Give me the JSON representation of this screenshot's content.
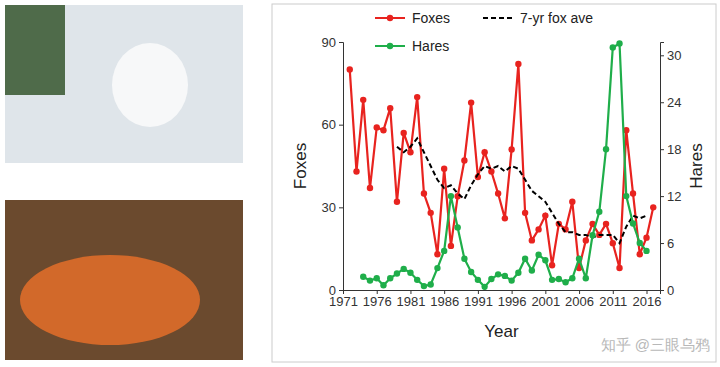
{
  "chart_data": {
    "type": "line",
    "x_label": "Year",
    "y_label": "Foxes",
    "y2_label": "Hares",
    "xlim": [
      1971,
      2018
    ],
    "xticks": [
      1971,
      1976,
      1981,
      1986,
      1991,
      1996,
      2001,
      2006,
      2011,
      2016
    ],
    "ylim": [
      0,
      90
    ],
    "yticks": [
      0,
      30,
      60,
      90
    ],
    "y2lim": [
      0,
      31.7
    ],
    "y2ticks": [
      0,
      6,
      12,
      18,
      24,
      30
    ],
    "legend": "upper left",
    "grid": false,
    "annotations": [
      "知乎 @三眼乌鸦"
    ],
    "series": [
      {
        "name": "Foxes",
        "color": "#e8231f",
        "marker": "circle",
        "line_style": "solid",
        "x": [
          1972,
          1973,
          1974,
          1975,
          1976,
          1977,
          1978,
          1979,
          1980,
          1981,
          1982,
          1983,
          1984,
          1985,
          1986,
          1987,
          1988,
          1989,
          1990,
          1991,
          1992,
          1993,
          1994,
          1995,
          1996,
          1997,
          1998,
          1999,
          2000,
          2001,
          2002,
          2003,
          2004,
          2005,
          2006,
          2007,
          2008,
          2009,
          2010,
          2011,
          2012,
          2013,
          2014,
          2015,
          2016,
          2017
        ],
        "values": [
          80,
          43,
          69,
          37,
          59,
          58,
          66,
          32,
          57,
          50,
          70,
          35,
          28,
          13,
          44,
          16,
          34,
          47,
          68,
          41,
          50,
          43,
          35,
          26,
          51,
          82,
          28,
          18,
          22,
          27,
          9,
          24,
          22,
          32,
          8,
          18,
          24,
          20,
          24,
          17,
          8,
          58,
          35,
          13,
          19,
          30
        ]
      },
      {
        "name": "7-yr fox ave",
        "color": "#000000",
        "marker": "none",
        "line_style": "dashed",
        "x": [
          1979,
          1980,
          1981,
          1982,
          1983,
          1984,
          1985,
          1986,
          1987,
          1988,
          1989,
          1990,
          1991,
          1992,
          1993,
          1994,
          1995,
          1996,
          1997,
          1998,
          1999,
          2000,
          2001,
          2002,
          2003,
          2004,
          2005,
          2006,
          2007,
          2008,
          2009,
          2010,
          2011,
          2012,
          2013,
          2014,
          2015,
          2016
        ],
        "values": [
          52,
          50,
          52,
          55,
          50,
          45,
          40,
          37,
          38,
          35,
          33,
          38,
          42,
          45,
          44,
          45,
          43,
          45,
          44,
          40,
          36,
          34,
          32,
          28,
          24,
          21,
          21,
          20,
          20,
          19,
          20,
          20,
          20,
          17,
          23,
          27,
          26,
          27
        ]
      },
      {
        "name": "Hares",
        "color": "#1fae4a",
        "marker": "circle",
        "line_style": "solid",
        "axis": "y2",
        "x": [
          1974,
          1975,
          1976,
          1977,
          1978,
          1979,
          1980,
          1981,
          1982,
          1983,
          1984,
          1985,
          1986,
          1987,
          1988,
          1989,
          1990,
          1991,
          1992,
          1993,
          1994,
          1995,
          1996,
          1997,
          1998,
          1999,
          2000,
          2001,
          2002,
          2003,
          2004,
          2005,
          2006,
          2007,
          2008,
          2009,
          2010,
          2011,
          2012,
          2013,
          2014,
          2015,
          2016
        ],
        "values": [
          1.7,
          1.2,
          1.5,
          0.6,
          1.5,
          2.1,
          2.7,
          2.2,
          1.3,
          0.5,
          0.7,
          2.8,
          5,
          12,
          8,
          4,
          2.3,
          1.3,
          0.4,
          1.4,
          2.0,
          1.8,
          1.2,
          2.2,
          4.0,
          2.5,
          4.5,
          3.8,
          1.3,
          1.4,
          1.0,
          1.5,
          4.0,
          1.5,
          7.0,
          10,
          18,
          31,
          31.5,
          12,
          8.5,
          6,
          5
        ]
      }
    ]
  }
}
